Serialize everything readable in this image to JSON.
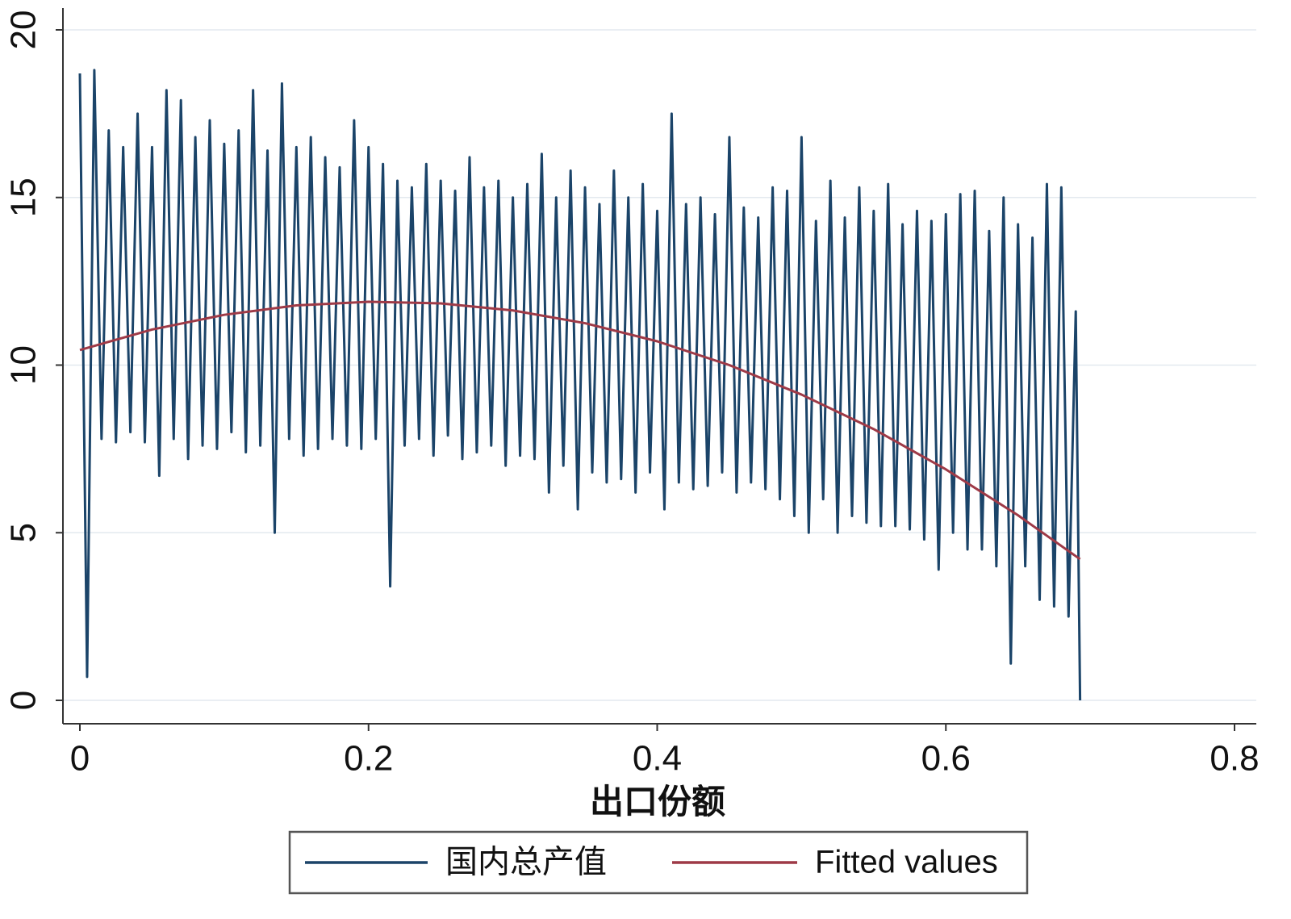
{
  "chart_data": {
    "type": "line",
    "xlabel": "出口份额",
    "xlim": [
      0,
      0.8
    ],
    "xticks": [
      0,
      0.2,
      0.4,
      0.6,
      0.8
    ],
    "ylim": [
      0,
      20
    ],
    "yticks": [
      0,
      5,
      10,
      15,
      20
    ],
    "grid": true,
    "legend": "bottom",
    "series": [
      {
        "name": "国内总产值",
        "color": "#1b4469",
        "x": [
          0,
          0.005,
          0.01,
          0.015,
          0.02,
          0.025,
          0.03,
          0.035,
          0.04,
          0.045,
          0.05,
          0.055,
          0.06,
          0.065,
          0.07,
          0.075,
          0.08,
          0.085,
          0.09,
          0.095,
          0.1,
          0.105,
          0.11,
          0.115,
          0.12,
          0.125,
          0.13,
          0.135,
          0.14,
          0.145,
          0.15,
          0.155,
          0.16,
          0.165,
          0.17,
          0.175,
          0.18,
          0.185,
          0.19,
          0.195,
          0.2,
          0.205,
          0.21,
          0.215,
          0.22,
          0.225,
          0.23,
          0.235,
          0.24,
          0.245,
          0.25,
          0.255,
          0.26,
          0.265,
          0.27,
          0.275,
          0.28,
          0.285,
          0.29,
          0.295,
          0.3,
          0.305,
          0.31,
          0.315,
          0.32,
          0.325,
          0.33,
          0.335,
          0.34,
          0.345,
          0.35,
          0.355,
          0.36,
          0.365,
          0.37,
          0.375,
          0.38,
          0.385,
          0.39,
          0.395,
          0.4,
          0.405,
          0.41,
          0.415,
          0.42,
          0.425,
          0.43,
          0.435,
          0.44,
          0.445,
          0.45,
          0.455,
          0.46,
          0.465,
          0.47,
          0.475,
          0.48,
          0.485,
          0.49,
          0.495,
          0.5,
          0.505,
          0.51,
          0.515,
          0.52,
          0.525,
          0.53,
          0.535,
          0.54,
          0.545,
          0.55,
          0.555,
          0.56,
          0.565,
          0.57,
          0.575,
          0.58,
          0.585,
          0.59,
          0.595,
          0.6,
          0.605,
          0.61,
          0.615,
          0.62,
          0.625,
          0.63,
          0.635,
          0.64,
          0.645,
          0.65,
          0.655,
          0.66,
          0.665,
          0.67,
          0.675,
          0.68,
          0.685,
          0.69,
          0.693
        ],
        "values": [
          18.7,
          0.7,
          18.8,
          7.8,
          17,
          7.7,
          16.5,
          8,
          17.5,
          7.7,
          16.5,
          6.7,
          18.2,
          7.8,
          17.9,
          7.2,
          16.8,
          7.6,
          17.3,
          7.5,
          16.6,
          8,
          17,
          7.4,
          18.2,
          7.6,
          16.4,
          5,
          18.4,
          7.8,
          16.5,
          7.3,
          16.8,
          7.5,
          16.2,
          7.8,
          15.9,
          7.6,
          17.3,
          7.5,
          16.5,
          7.8,
          16,
          3.4,
          15.5,
          7.6,
          15.3,
          7.8,
          16,
          7.3,
          15.5,
          7.9,
          15.2,
          7.2,
          16.2,
          7.4,
          15.3,
          7.6,
          15.5,
          7,
          15,
          7.3,
          15.4,
          7.2,
          16.3,
          6.2,
          15,
          7,
          15.8,
          5.7,
          15.3,
          6.8,
          14.8,
          6.5,
          15.8,
          6.6,
          15,
          6.2,
          15.4,
          6.8,
          14.6,
          5.7,
          17.5,
          6.5,
          14.8,
          6.3,
          15,
          6.4,
          14.5,
          6.8,
          16.8,
          6.2,
          14.7,
          6.5,
          14.4,
          6.3,
          15.3,
          6,
          15.2,
          5.5,
          16.8,
          5,
          14.3,
          6,
          15.5,
          5,
          14.4,
          5.5,
          15.3,
          5.3,
          14.6,
          5.2,
          15.4,
          5.2,
          14.2,
          5.1,
          14.6,
          4.8,
          14.3,
          3.9,
          14.5,
          5,
          15.1,
          4.5,
          15.2,
          4.5,
          14,
          4,
          15,
          1.1,
          14.2,
          4,
          13.8,
          3,
          15.4,
          2.8,
          15.3,
          2.5,
          11.6,
          0
        ]
      },
      {
        "name": "Fitted values",
        "color": "#9e3a47",
        "x": [
          0,
          0.05,
          0.1,
          0.15,
          0.2,
          0.25,
          0.3,
          0.35,
          0.4,
          0.45,
          0.5,
          0.55,
          0.6,
          0.65,
          0.693
        ],
        "values": [
          10.45,
          11.06,
          11.5,
          11.78,
          11.89,
          11.84,
          11.63,
          11.25,
          10.71,
          10.0,
          9.12,
          8.09,
          6.89,
          5.52,
          4.21
        ]
      }
    ]
  }
}
